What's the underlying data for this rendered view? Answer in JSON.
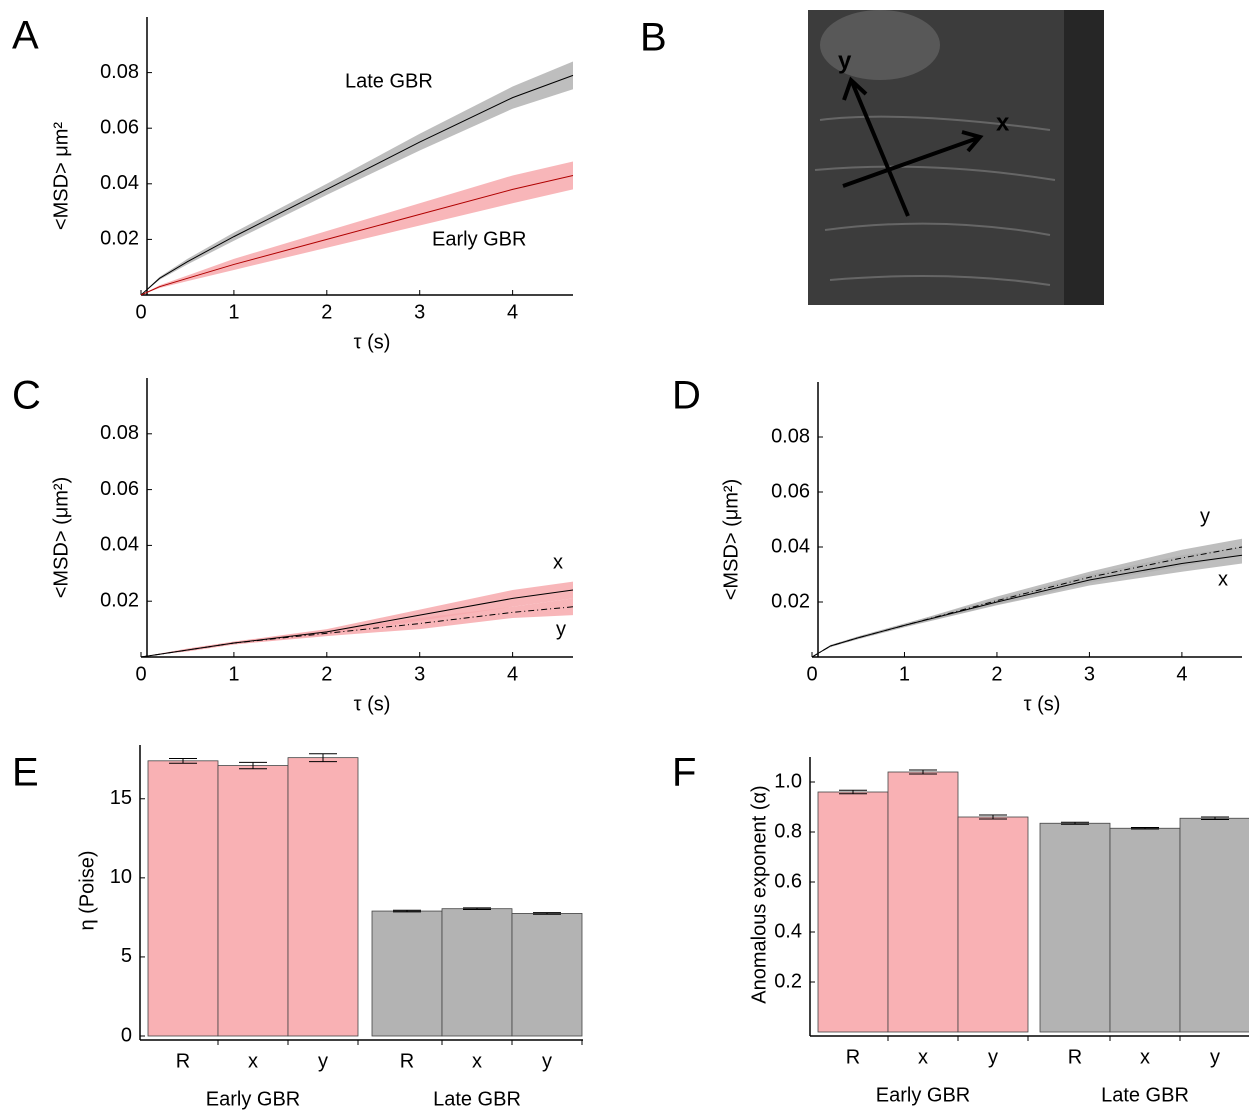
{
  "panel_b": {
    "label": "B",
    "axis_labels": [
      "x",
      "y"
    ]
  },
  "chart_data": [
    {
      "type": "line",
      "label": "A",
      "x": [
        0,
        0.2,
        0.5,
        1,
        2,
        3,
        4,
        4.65
      ],
      "xlim": [
        0,
        4.65
      ],
      "xticks": [
        0,
        1,
        2,
        3,
        4
      ],
      "ylim": [
        0,
        0.1
      ],
      "yticks": [
        0.02,
        0.04,
        0.06,
        0.08
      ],
      "xlabel": "τ (s)",
      "ylabel": "<MSD> μm²",
      "series": [
        {
          "name": "Late GBR",
          "color": "#000000",
          "band_color": "#b3b3b3",
          "dash": "solid",
          "values": [
            0,
            0.006,
            0.012,
            0.021,
            0.038,
            0.055,
            0.071,
            0.079
          ],
          "lower": [
            0,
            0.0055,
            0.011,
            0.0195,
            0.036,
            0.052,
            0.067,
            0.074
          ],
          "upper": [
            0,
            0.0065,
            0.013,
            0.0225,
            0.04,
            0.058,
            0.075,
            0.084
          ]
        },
        {
          "name": "Early GBR",
          "color": "#b00000",
          "band_color": "#f7a9ad",
          "dash": "solid",
          "values": [
            0,
            0.003,
            0.006,
            0.011,
            0.02,
            0.029,
            0.038,
            0.043
          ],
          "lower": [
            0,
            0.0025,
            0.005,
            0.009,
            0.017,
            0.025,
            0.033,
            0.038
          ],
          "upper": [
            0,
            0.0035,
            0.007,
            0.013,
            0.023,
            0.033,
            0.043,
            0.048
          ]
        }
      ]
    },
    {
      "type": "line",
      "label": "C",
      "x": [
        0,
        0.2,
        0.5,
        1,
        2,
        3,
        4,
        4.65
      ],
      "xlim": [
        0,
        4.65
      ],
      "xticks": [
        0,
        1,
        2,
        3,
        4
      ],
      "ylim": [
        0,
        0.1
      ],
      "yticks": [
        0.02,
        0.04,
        0.06,
        0.08
      ],
      "xlabel": "τ (s)",
      "ylabel": "<MSD> (μm²)",
      "series": [
        {
          "name": "x",
          "color": "#000000",
          "band_color": "#f7a9ad",
          "dash": "solid",
          "values": [
            0,
            0.001,
            0.0025,
            0.005,
            0.009,
            0.015,
            0.021,
            0.024
          ],
          "lower": [
            0,
            0.001,
            0.002,
            0.0045,
            0.008,
            0.013,
            0.018,
            0.021
          ],
          "upper": [
            0,
            0.0012,
            0.003,
            0.0055,
            0.01,
            0.017,
            0.024,
            0.027
          ]
        },
        {
          "name": "y",
          "color": "#000000",
          "band_color": "#f7a9ad",
          "dash": "dash-dot",
          "values": [
            0,
            0.001,
            0.0025,
            0.005,
            0.0085,
            0.012,
            0.016,
            0.018
          ],
          "lower": [
            0,
            0.001,
            0.002,
            0.0045,
            0.0075,
            0.01,
            0.014,
            0.015
          ],
          "upper": [
            0,
            0.0012,
            0.003,
            0.0055,
            0.0095,
            0.014,
            0.018,
            0.021
          ]
        }
      ]
    },
    {
      "type": "line",
      "label": "D",
      "x": [
        0,
        0.2,
        0.5,
        1,
        2,
        3,
        4,
        4.65
      ],
      "xlim": [
        0,
        4.65
      ],
      "xticks": [
        0,
        1,
        2,
        3,
        4
      ],
      "ylim": [
        0,
        0.1
      ],
      "yticks": [
        0.02,
        0.04,
        0.06,
        0.08
      ],
      "xlabel": "τ (s)",
      "ylabel": "<MSD> (μm²)",
      "series": [
        {
          "name": "y",
          "color": "#000000",
          "band_color": "#b3b3b3",
          "dash": "dash-dot",
          "values": [
            0,
            0.004,
            0.007,
            0.0115,
            0.0205,
            0.029,
            0.036,
            0.04
          ],
          "lower": [
            0,
            0.0038,
            0.0065,
            0.011,
            0.019,
            0.027,
            0.033,
            0.037
          ],
          "upper": [
            0,
            0.0042,
            0.0075,
            0.012,
            0.022,
            0.031,
            0.039,
            0.043
          ]
        },
        {
          "name": "x",
          "color": "#000000",
          "band_color": "#b3b3b3",
          "dash": "solid",
          "values": [
            0,
            0.004,
            0.007,
            0.0115,
            0.02,
            0.028,
            0.034,
            0.037
          ],
          "lower": [
            0,
            0.0036,
            0.0065,
            0.0108,
            0.0188,
            0.026,
            0.031,
            0.034
          ],
          "upper": [
            0,
            0.0044,
            0.0075,
            0.0122,
            0.0212,
            0.03,
            0.037,
            0.04
          ]
        }
      ]
    },
    {
      "type": "bar",
      "label": "E",
      "categories": [
        "R",
        "x",
        "y"
      ],
      "ylim": [
        0,
        18.4
      ],
      "yticks": [
        0,
        5,
        10,
        15
      ],
      "ylabel": "η (Poise)",
      "series": [
        {
          "name": "Early GBR",
          "color": "#f9b1b4",
          "values": [
            17.4,
            17.1,
            17.6
          ],
          "errors": [
            0.15,
            0.2,
            0.25
          ]
        },
        {
          "name": "Late GBR",
          "color": "#b3b3b3",
          "values": [
            7.9,
            8.05,
            7.75
          ],
          "errors": [
            0.05,
            0.05,
            0.05
          ]
        }
      ]
    },
    {
      "type": "bar",
      "label": "F",
      "categories": [
        "R",
        "x",
        "y"
      ],
      "ylim": [
        0,
        1.1
      ],
      "yticks": [
        0.2,
        0.4,
        0.6,
        0.8,
        {
          "value": 1,
          "label": "1.0"
        }
      ],
      "ylabel": "Anomalous exponent (α)",
      "series": [
        {
          "name": "Early GBR",
          "color": "#f9b1b4",
          "values": [
            0.96,
            1.04,
            0.86
          ],
          "errors": [
            0.007,
            0.008,
            0.008
          ]
        },
        {
          "name": "Late GBR",
          "color": "#b3b3b3",
          "values": [
            0.835,
            0.815,
            0.855
          ],
          "errors": [
            0.004,
            0.003,
            0.005
          ]
        }
      ]
    }
  ]
}
